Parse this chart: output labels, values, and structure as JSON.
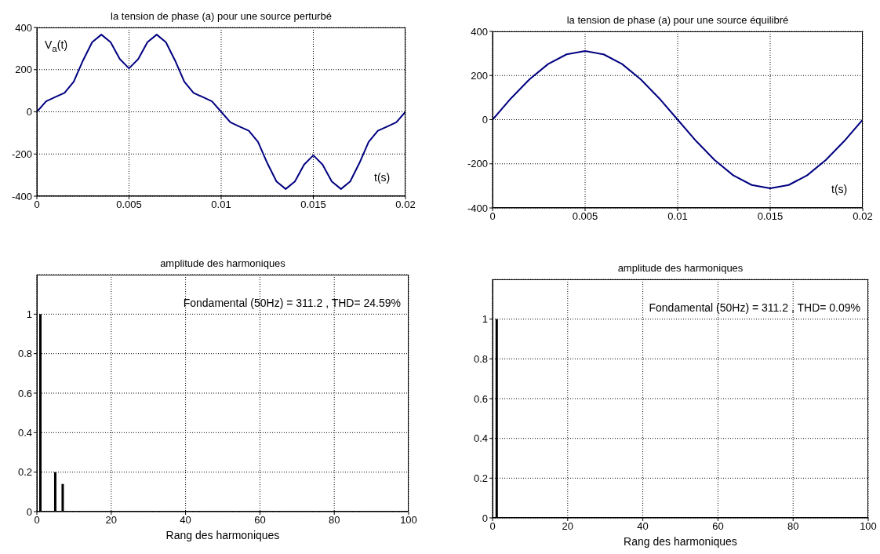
{
  "chart_data": [
    {
      "type": "line",
      "title": "la tension de phase (a) pour une source perturbé",
      "ylabel": "V$_{a}$(t)",
      "xlabel": "t(s)",
      "x": [
        0,
        0.0005,
        0.001,
        0.0015,
        0.002,
        0.0025,
        0.003,
        0.0035,
        0.004,
        0.0045,
        0.005,
        0.0055,
        0.006,
        0.0065,
        0.007,
        0.0075,
        0.008,
        0.0085,
        0.009,
        0.0095,
        0.01,
        0.0105,
        0.011,
        0.0115,
        0.012,
        0.0125,
        0.013,
        0.0135,
        0.014,
        0.0145,
        0.015,
        0.0155,
        0.016,
        0.0165,
        0.017,
        0.0175,
        0.018,
        0.0185,
        0.019,
        0.0195,
        0.02
      ],
      "series": [
        {
          "color": "#000080",
          "values": [
            0,
            50,
            70,
            90,
            143,
            243,
            330,
            366,
            330,
            250,
            206,
            250,
            330,
            366,
            330,
            243,
            143,
            90,
            70,
            50,
            0,
            -50,
            -70,
            -90,
            -143,
            -243,
            -330,
            -366,
            -330,
            -250,
            -206,
            -250,
            -330,
            -366,
            -330,
            -243,
            -143,
            -90,
            -70,
            -50,
            0
          ]
        }
      ],
      "xlim": [
        0,
        0.02
      ],
      "xticks": [
        0,
        0.005,
        0.01,
        0.015,
        0.02
      ],
      "ylim": [
        -400,
        400
      ],
      "yticks": [
        -400,
        -200,
        0,
        200,
        400
      ],
      "grid": true
    },
    {
      "type": "line",
      "title": "la tension de phase (a) pour une source équilibré",
      "xlabel": "t(s)",
      "x": [
        0,
        0.001,
        0.002,
        0.003,
        0.004,
        0.005,
        0.006,
        0.007,
        0.008,
        0.009,
        0.01,
        0.011,
        0.012,
        0.013,
        0.014,
        0.015,
        0.016,
        0.017,
        0.018,
        0.019,
        0.02
      ],
      "series": [
        {
          "color": "#000080",
          "values": [
            0,
            97,
            183,
            252,
            296,
            311,
            296,
            252,
            183,
            97,
            0,
            -97,
            -183,
            -252,
            -296,
            -311,
            -296,
            -252,
            -183,
            -97,
            0
          ]
        }
      ],
      "xlim": [
        0,
        0.02
      ],
      "xticks": [
        0,
        0.005,
        0.01,
        0.015,
        0.02
      ],
      "ylim": [
        -400,
        400
      ],
      "yticks": [
        -400,
        -200,
        0,
        200,
        400
      ],
      "grid": true
    },
    {
      "type": "bar",
      "title": "amplitude des harmoniques",
      "xlabel": "Rang des harmoniques",
      "annotations": [
        "Fondamental (50Hz) = 311.2 , THD= 24.59%"
      ],
      "x": [
        1,
        5,
        7
      ],
      "series": [
        {
          "color": "#000000",
          "values": [
            1,
            0.2,
            0.14
          ]
        }
      ],
      "xlim": [
        0,
        100
      ],
      "xticks": [
        0,
        20,
        40,
        60,
        80,
        100
      ],
      "ylim": [
        0,
        1.2
      ],
      "yticks": [
        0,
        0.2,
        0.4,
        0.6,
        0.8,
        1
      ],
      "grid": true
    },
    {
      "type": "bar",
      "title": "amplitude des harmoniques",
      "xlabel": "Rang des harmoniques",
      "annotations": [
        "Fondamental (50Hz) = 311.2 , THD= 0.09%"
      ],
      "x": [
        1
      ],
      "series": [
        {
          "color": "#000000",
          "values": [
            1
          ]
        }
      ],
      "xlim": [
        0,
        100
      ],
      "xticks": [
        0,
        20,
        40,
        60,
        80,
        100
      ],
      "ylim": [
        0,
        1.2
      ],
      "yticks": [
        0,
        0.2,
        0.4,
        0.6,
        0.8,
        1
      ],
      "grid": true
    }
  ]
}
